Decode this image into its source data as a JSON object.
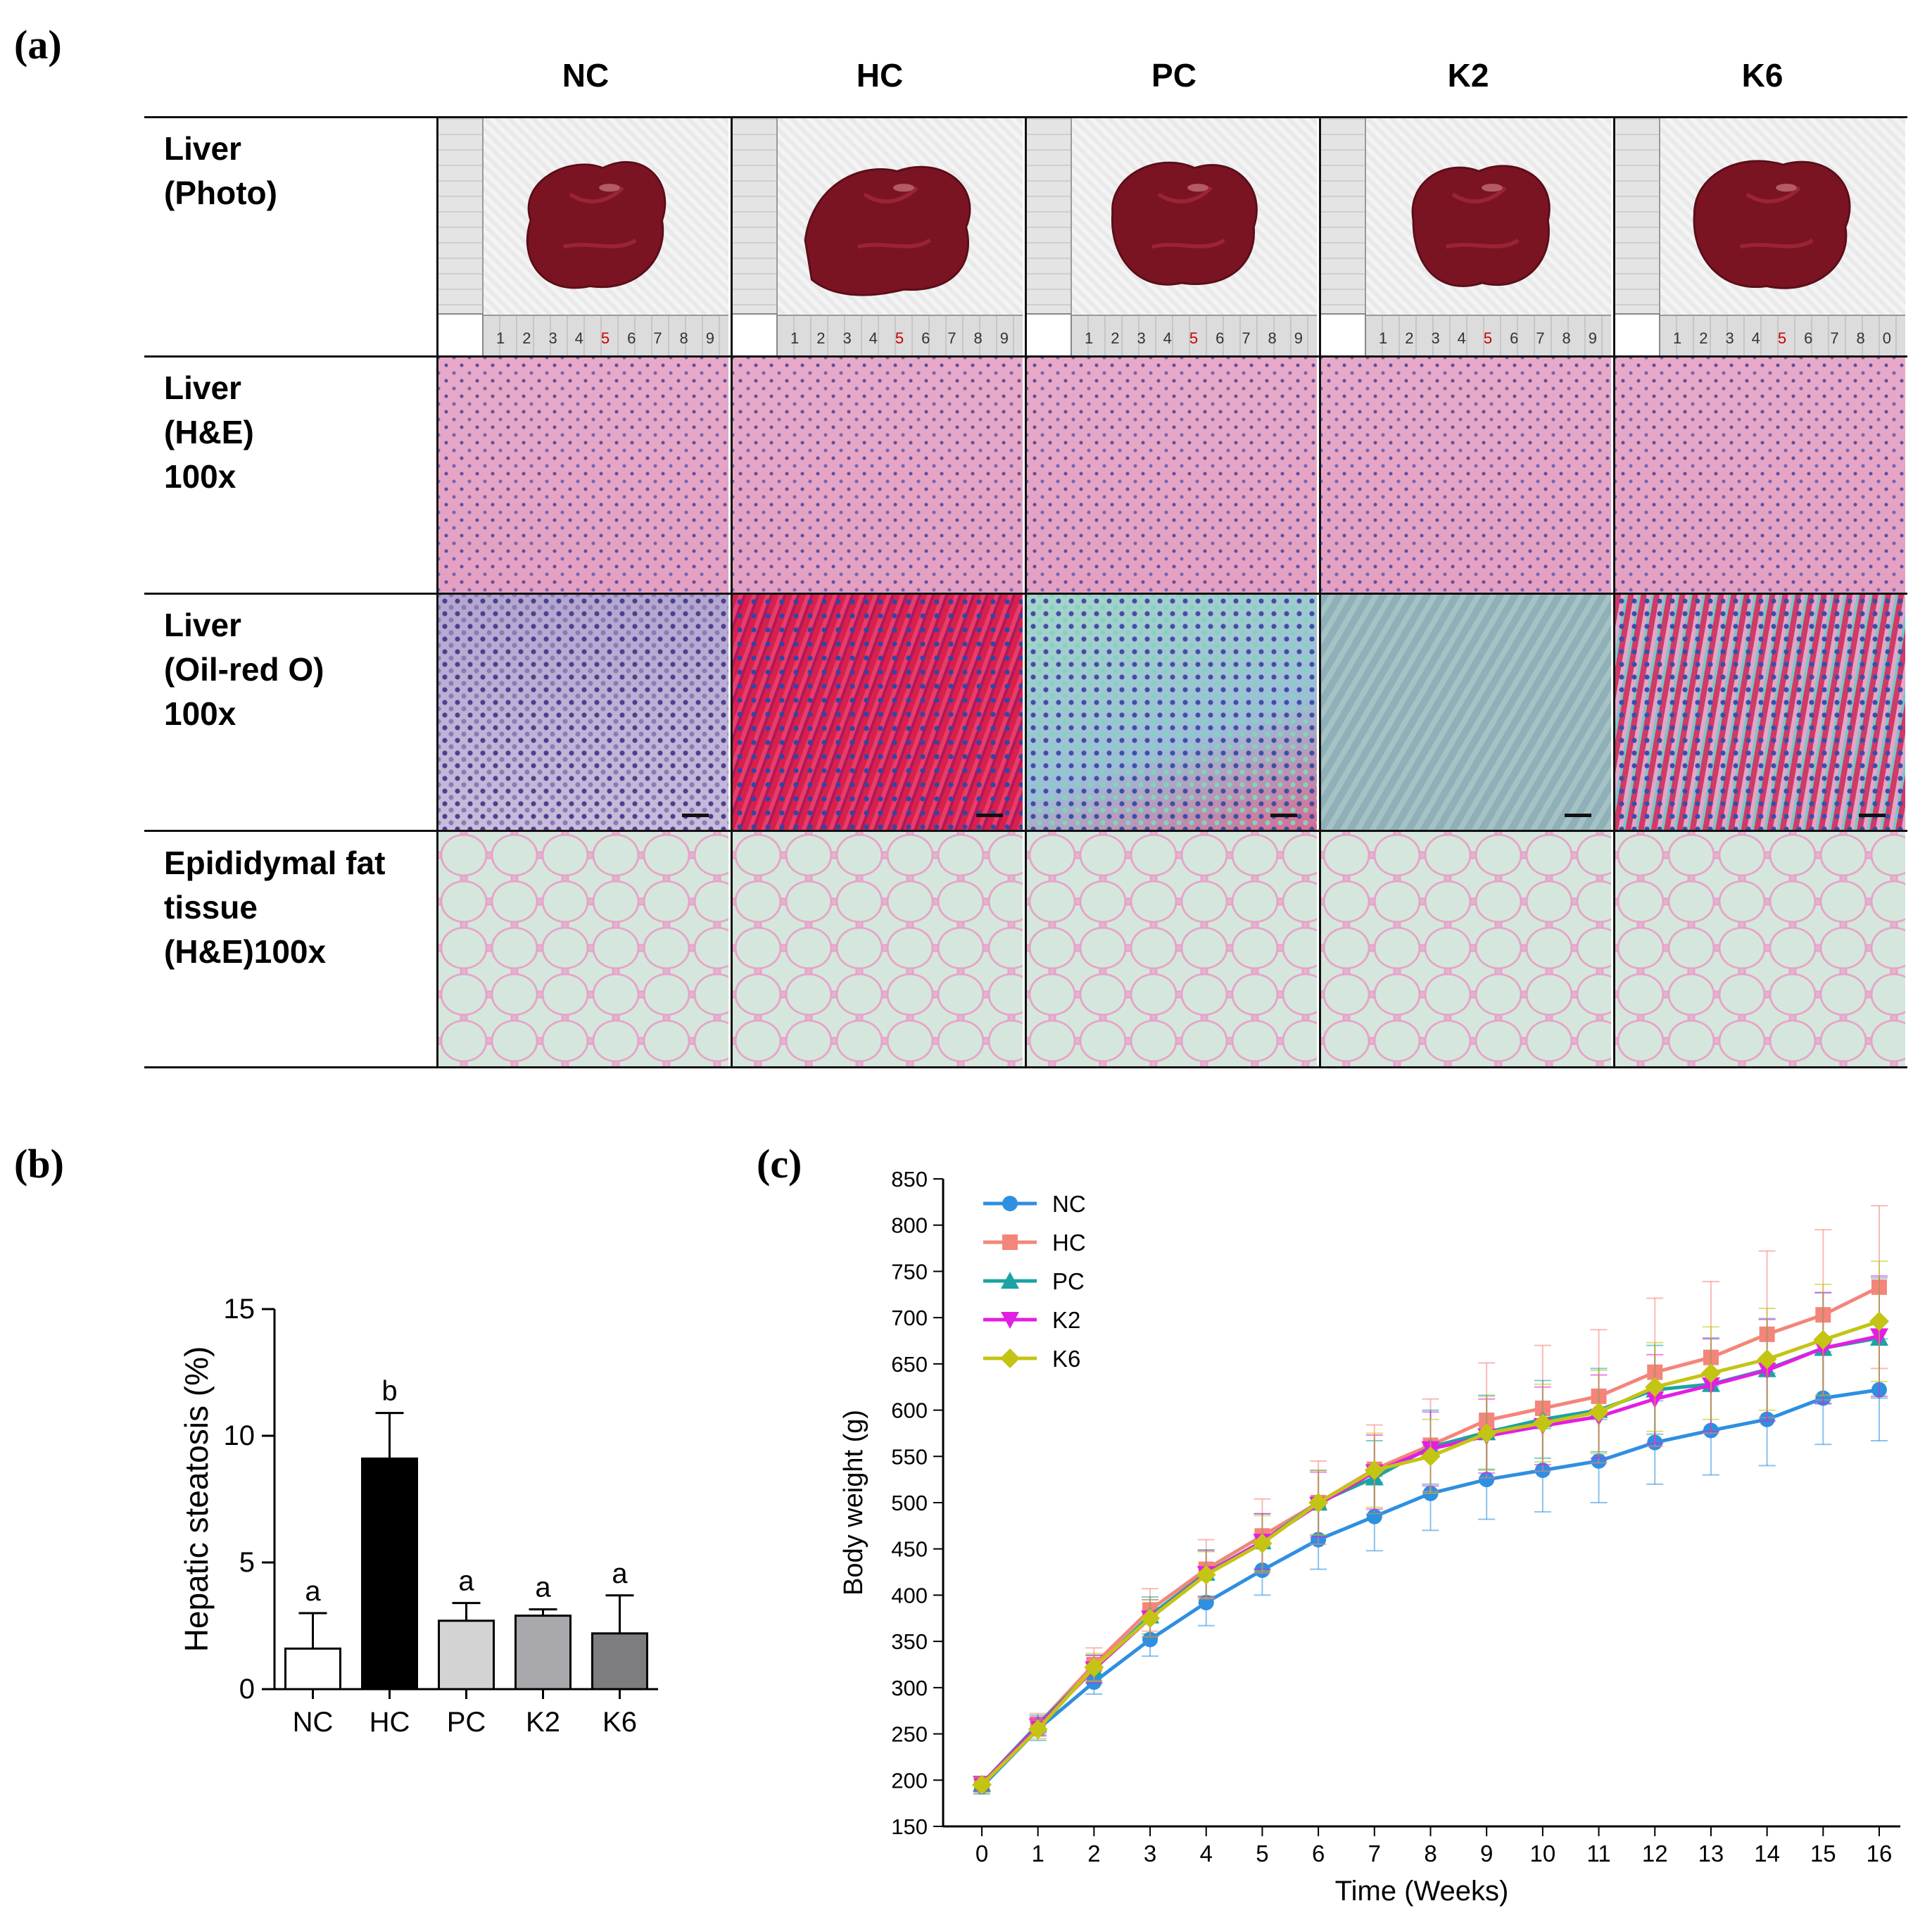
{
  "panel_labels": {
    "a": "(a)",
    "b": "(b)",
    "c": "(c)"
  },
  "panel_a": {
    "groups": [
      "NC",
      "HC",
      "PC",
      "K2",
      "K6"
    ],
    "rows": [
      {
        "lines": [
          "Liver",
          "(Photo)"
        ]
      },
      {
        "lines": [
          "Liver",
          "(H&E)",
          "100x"
        ]
      },
      {
        "lines": [
          "Liver",
          "(Oil-red O)",
          "100x"
        ]
      },
      {
        "lines": [
          "Epididymal fat",
          "tissue",
          "(H&E)100x"
        ]
      }
    ],
    "ruler_numbers": [
      "1",
      "2",
      "3",
      "4",
      "5",
      "6",
      "7",
      "8",
      "9"
    ],
    "ruler_numbers_k6": [
      "1",
      "2",
      "3",
      "4",
      "5",
      "6",
      "7",
      "8",
      "0"
    ]
  },
  "chart_data": [
    {
      "type": "bar",
      "panel": "b",
      "categories": [
        "NC",
        "HC",
        "PC",
        "K2",
        "K6"
      ],
      "values": [
        1.6,
        9.1,
        2.7,
        2.9,
        2.2
      ],
      "errors": [
        1.4,
        1.8,
        0.7,
        0.25,
        1.5
      ],
      "significance": [
        "a",
        "b",
        "a",
        "a",
        "a"
      ],
      "colors": [
        "#ffffff",
        "#000000",
        "#d3d3d3",
        "#a9a9ad",
        "#7d7d80"
      ],
      "ylabel": "Hepatic steatosis (%)",
      "ylim": [
        0,
        15
      ],
      "yticks": [
        "0",
        "5",
        "10",
        "15"
      ]
    },
    {
      "type": "line",
      "panel": "c",
      "xlabel": "Time (Weeks)",
      "ylabel": "Body weight (g)",
      "ylim": [
        150,
        850
      ],
      "xlim": [
        0,
        16
      ],
      "x": [
        0,
        1,
        2,
        3,
        4,
        5,
        6,
        7,
        8,
        9,
        10,
        11,
        12,
        13,
        14,
        15,
        16
      ],
      "xticks": [
        "0",
        "1",
        "2",
        "3",
        "4",
        "5",
        "6",
        "7",
        "8",
        "9",
        "10",
        "11",
        "12",
        "13",
        "14",
        "15",
        "16"
      ],
      "yticks": [
        "150",
        "200",
        "250",
        "300",
        "350",
        "400",
        "450",
        "500",
        "550",
        "600",
        "650",
        "700",
        "750",
        "800",
        "850"
      ],
      "legend_position": "top-left",
      "series": [
        {
          "name": "NC",
          "color": "#2f8fe0",
          "marker": "circle",
          "values": [
            193,
            255,
            306,
            352,
            392,
            427,
            460,
            485,
            510,
            525,
            535,
            545,
            565,
            578,
            590,
            613,
            622
          ],
          "errors": [
            8,
            12,
            13,
            18,
            25,
            27,
            32,
            37,
            40,
            43,
            45,
            45,
            45,
            48,
            50,
            50,
            55
          ]
        },
        {
          "name": "HC",
          "color": "#f4857a",
          "marker": "square",
          "values": [
            195,
            260,
            325,
            384,
            428,
            464,
            500,
            536,
            562,
            589,
            602,
            615,
            641,
            657,
            682,
            703,
            733
          ],
          "errors": [
            8,
            12,
            18,
            23,
            32,
            40,
            45,
            48,
            50,
            62,
            68,
            72,
            80,
            82,
            90,
            92,
            88
          ]
        },
        {
          "name": "PC",
          "color": "#1ca3a3",
          "marker": "triangle-up",
          "values": [
            196,
            260,
            320,
            378,
            424,
            458,
            500,
            527,
            560,
            576,
            590,
            600,
            622,
            628,
            644,
            667,
            678
          ],
          "errors": [
            8,
            10,
            15,
            20,
            25,
            30,
            35,
            40,
            40,
            40,
            42,
            45,
            48,
            50,
            55,
            60,
            65
          ]
        },
        {
          "name": "K2",
          "color": "#e31ee3",
          "marker": "triangle-down",
          "values": [
            196,
            258,
            320,
            375,
            423,
            458,
            498,
            533,
            558,
            572,
            583,
            593,
            612,
            627,
            643,
            667,
            680
          ],
          "errors": [
            8,
            10,
            15,
            20,
            25,
            30,
            35,
            40,
            40,
            40,
            42,
            45,
            48,
            50,
            55,
            60,
            65
          ]
        },
        {
          "name": "K6",
          "color": "#c4c414",
          "marker": "diamond",
          "values": [
            195,
            255,
            322,
            375,
            422,
            456,
            500,
            535,
            550,
            575,
            586,
            598,
            625,
            640,
            655,
            676,
            696
          ],
          "errors": [
            8,
            10,
            15,
            20,
            25,
            30,
            35,
            40,
            40,
            40,
            42,
            45,
            48,
            50,
            55,
            60,
            65
          ]
        }
      ]
    }
  ]
}
